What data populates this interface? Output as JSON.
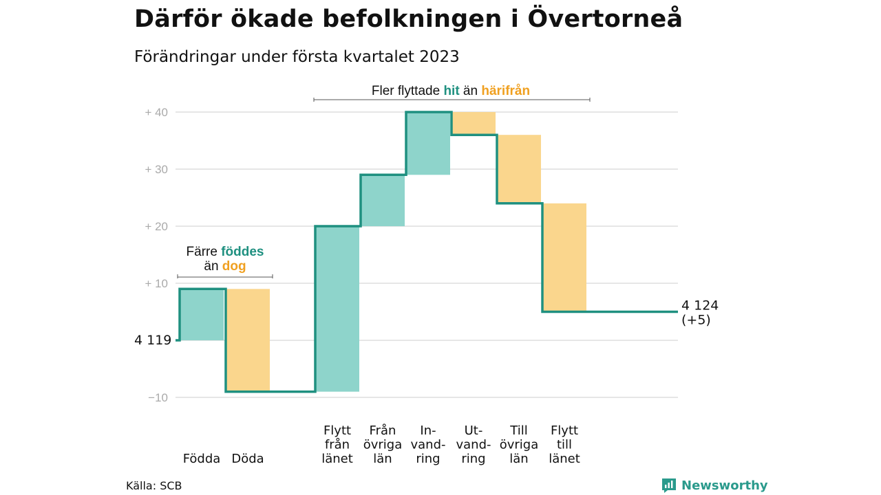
{
  "title": "Därför ökade befolkningen i Övertorneå",
  "subtitle": "Förändringar under första kvartalet 2023",
  "source": "Källa: SCB",
  "brand": "Newsworthy",
  "colors": {
    "increase": "#8ed4cb",
    "decrease": "#fad68d",
    "line": "#1f9080",
    "accent_teal": "#1f9080",
    "accent_orange": "#f0a020"
  },
  "chart_data": {
    "type": "waterfall",
    "start": {
      "label": "4 119",
      "value": 4119
    },
    "end": {
      "label_value": "4 124",
      "label_change": "(+5)",
      "value": 4124
    },
    "ylim": [
      -10,
      40
    ],
    "yticks": [
      -10,
      0,
      10,
      20,
      30,
      40
    ],
    "ytick_labels": [
      "−10",
      "",
      "+ 10",
      "+ 20",
      "+ 30",
      "+ 40"
    ],
    "grid": true,
    "steps": [
      {
        "lines": [
          "Födda"
        ],
        "value": 9
      },
      {
        "lines": [
          "Döda"
        ],
        "value": -18
      },
      {
        "lines": [
          "Flytt",
          "från",
          "länet"
        ],
        "value": 29
      },
      {
        "lines": [
          "Från",
          "övriga",
          "län"
        ],
        "value": 9
      },
      {
        "lines": [
          "In-",
          "vand-",
          "ring"
        ],
        "value": 11
      },
      {
        "lines": [
          "Ut-",
          "vand-",
          "ring"
        ],
        "value": -4
      },
      {
        "lines": [
          "Till",
          "övriga",
          "län"
        ],
        "value": -12
      },
      {
        "lines": [
          "Flytt",
          "till",
          "länet"
        ],
        "value": -19
      }
    ],
    "annotations": {
      "births": {
        "line1": "Färre ",
        "line1_accent": "föddes",
        "line2": "än ",
        "line2_accent": "dog"
      },
      "migration": {
        "prefix": "Fler flyttade ",
        "accent1": "hit",
        "middle": " än ",
        "accent2": "härifrån"
      }
    }
  }
}
